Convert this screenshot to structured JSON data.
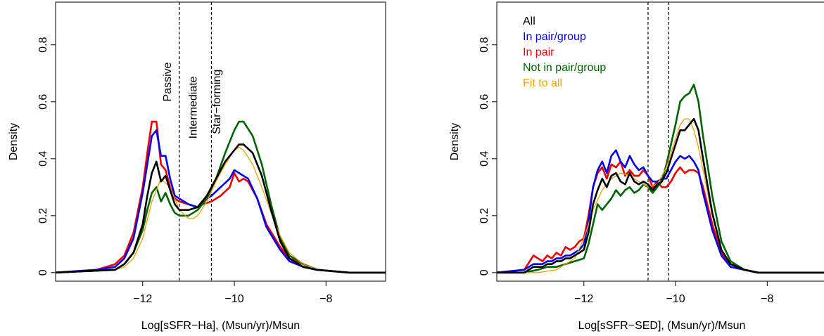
{
  "colors": {
    "all": "#000000",
    "pair_group": "#0000ee",
    "pair": "#ee0000",
    "not_pair_group": "#006400",
    "fit": "#f0a000"
  },
  "chart_data": [
    {
      "type": "line",
      "xlabel": "Log[sSFR−Ha], (Msun/yr)/Msun",
      "ylabel": "Density",
      "xlim": [
        -13.9,
        -6.7
      ],
      "ylim": [
        -0.03,
        0.95
      ],
      "xticks": [
        {
          "v": -12,
          "label": "−12"
        },
        {
          "v": -10,
          "label": "−10"
        },
        {
          "v": -8,
          "label": "−8"
        }
      ],
      "yticks": [
        {
          "v": 0,
          "label": "0"
        },
        {
          "v": 0.2,
          "label": "0.2"
        },
        {
          "v": 0.4,
          "label": "0.4"
        },
        {
          "v": 0.6,
          "label": "0.6"
        },
        {
          "v": 0.8,
          "label": "0.8"
        }
      ],
      "vlines": [
        -11.2,
        -10.5
      ],
      "region_labels": [
        {
          "text": "Passive",
          "x": -11.38,
          "y": 0.67
        },
        {
          "text": "Intermediate",
          "x": -10.82,
          "y": 0.58
        },
        {
          "text": "Star−forming",
          "x": -10.31,
          "y": 0.6
        }
      ],
      "legend": [],
      "series": [
        {
          "key": "pair",
          "x": [
            -13.9,
            -13.0,
            -12.6,
            -12.4,
            -12.2,
            -12.0,
            -11.9,
            -11.8,
            -11.7,
            -11.6,
            -11.5,
            -11.4,
            -11.3,
            -11.2,
            -11.0,
            -10.8,
            -10.7,
            -10.5,
            -10.3,
            -10.1,
            -10.0,
            -9.9,
            -9.8,
            -9.7,
            -9.5,
            -9.3,
            -9.0,
            -8.8,
            -8.5,
            -8.2,
            -7.5,
            -6.7
          ],
          "y": [
            0,
            0.01,
            0.03,
            0.06,
            0.14,
            0.3,
            0.42,
            0.53,
            0.53,
            0.38,
            0.36,
            0.3,
            0.26,
            0.25,
            0.24,
            0.23,
            0.24,
            0.25,
            0.27,
            0.3,
            0.35,
            0.32,
            0.33,
            0.32,
            0.26,
            0.17,
            0.09,
            0.05,
            0.03,
            0.01,
            0.0,
            0.0
          ]
        },
        {
          "key": "pair_group",
          "x": [
            -13.9,
            -13.0,
            -12.6,
            -12.4,
            -12.2,
            -12.0,
            -11.9,
            -11.8,
            -11.7,
            -11.6,
            -11.5,
            -11.4,
            -11.3,
            -11.2,
            -11.0,
            -10.8,
            -10.7,
            -10.5,
            -10.3,
            -10.1,
            -10.0,
            -9.9,
            -9.8,
            -9.7,
            -9.5,
            -9.3,
            -9.0,
            -8.8,
            -8.5,
            -8.2,
            -7.5,
            -6.7
          ],
          "y": [
            0,
            0.01,
            0.02,
            0.05,
            0.12,
            0.28,
            0.38,
            0.48,
            0.5,
            0.41,
            0.41,
            0.33,
            0.27,
            0.26,
            0.24,
            0.23,
            0.25,
            0.27,
            0.3,
            0.33,
            0.36,
            0.35,
            0.34,
            0.33,
            0.26,
            0.16,
            0.08,
            0.04,
            0.02,
            0.01,
            0.0,
            0.0
          ]
        },
        {
          "key": "not_pair_group",
          "x": [
            -13.9,
            -12.6,
            -12.4,
            -12.2,
            -12.0,
            -11.9,
            -11.8,
            -11.7,
            -11.6,
            -11.5,
            -11.4,
            -11.3,
            -11.2,
            -11.0,
            -10.8,
            -10.6,
            -10.4,
            -10.2,
            -10.0,
            -9.9,
            -9.8,
            -9.6,
            -9.4,
            -9.2,
            -9.0,
            -8.8,
            -8.5,
            -8.2,
            -7.5,
            -6.7
          ],
          "y": [
            0,
            0.01,
            0.03,
            0.07,
            0.15,
            0.22,
            0.28,
            0.3,
            0.25,
            0.28,
            0.24,
            0.21,
            0.2,
            0.2,
            0.22,
            0.26,
            0.33,
            0.42,
            0.5,
            0.53,
            0.53,
            0.48,
            0.38,
            0.24,
            0.12,
            0.06,
            0.03,
            0.01,
            0.0,
            0.0
          ]
        },
        {
          "key": "fit",
          "x": [
            -13.9,
            -12.6,
            -12.4,
            -12.2,
            -12.0,
            -11.8,
            -11.6,
            -11.4,
            -11.2,
            -11.0,
            -10.9,
            -10.8,
            -10.6,
            -10.4,
            -10.2,
            -10.0,
            -9.9,
            -9.8,
            -9.6,
            -9.4,
            -9.2,
            -9.0,
            -8.8,
            -8.5,
            -8.2,
            -7.5,
            -6.7
          ],
          "y": [
            0,
            0.01,
            0.02,
            0.05,
            0.12,
            0.25,
            0.33,
            0.3,
            0.22,
            0.19,
            0.19,
            0.2,
            0.25,
            0.32,
            0.38,
            0.43,
            0.44,
            0.43,
            0.38,
            0.3,
            0.21,
            0.13,
            0.07,
            0.03,
            0.01,
            0.0,
            0.0
          ]
        },
        {
          "key": "all",
          "x": [
            -13.9,
            -12.6,
            -12.4,
            -12.2,
            -12.0,
            -11.9,
            -11.8,
            -11.7,
            -11.6,
            -11.5,
            -11.4,
            -11.3,
            -11.2,
            -11.0,
            -10.8,
            -10.6,
            -10.4,
            -10.2,
            -10.0,
            -9.9,
            -9.8,
            -9.6,
            -9.4,
            -9.2,
            -9.0,
            -8.8,
            -8.5,
            -8.2,
            -7.5,
            -6.7
          ],
          "y": [
            0,
            0.01,
            0.03,
            0.07,
            0.17,
            0.27,
            0.35,
            0.39,
            0.32,
            0.34,
            0.29,
            0.24,
            0.22,
            0.22,
            0.23,
            0.27,
            0.33,
            0.39,
            0.43,
            0.45,
            0.45,
            0.42,
            0.34,
            0.22,
            0.11,
            0.05,
            0.02,
            0.01,
            0.0,
            0.0
          ]
        }
      ]
    },
    {
      "type": "line",
      "xlabel": "Log[sSFR−SED], (Msun/yr)/Msun",
      "ylabel": "Density",
      "xlim": [
        -13.9,
        -6.7
      ],
      "ylim": [
        -0.03,
        0.95
      ],
      "xticks": [
        {
          "v": -12,
          "label": "−12"
        },
        {
          "v": -10,
          "label": "−10"
        },
        {
          "v": -8,
          "label": "−8"
        }
      ],
      "yticks": [
        {
          "v": 0,
          "label": "0"
        },
        {
          "v": 0.2,
          "label": "0.2"
        },
        {
          "v": 0.4,
          "label": "0.4"
        },
        {
          "v": 0.6,
          "label": "0.6"
        },
        {
          "v": 0.8,
          "label": "0.8"
        }
      ],
      "vlines": [
        -10.6,
        -10.15
      ],
      "region_labels": [],
      "legend": [
        {
          "key": "all",
          "label": "All"
        },
        {
          "key": "pair_group",
          "label": "In pair/group"
        },
        {
          "key": "pair",
          "label": "In pair"
        },
        {
          "key": "not_pair_group",
          "label": "Not in pair/group"
        },
        {
          "key": "fit",
          "label": "Fit to all"
        }
      ],
      "series": [
        {
          "key": "pair",
          "x": [
            -13.9,
            -13.3,
            -13.1,
            -13.0,
            -12.9,
            -12.8,
            -12.7,
            -12.6,
            -12.5,
            -12.4,
            -12.3,
            -12.2,
            -12.1,
            -12.0,
            -11.9,
            -11.8,
            -11.7,
            -11.6,
            -11.5,
            -11.4,
            -11.3,
            -11.2,
            -11.1,
            -11.0,
            -10.9,
            -10.8,
            -10.7,
            -10.6,
            -10.5,
            -10.4,
            -10.3,
            -10.2,
            -10.1,
            -10.0,
            -9.9,
            -9.8,
            -9.7,
            -9.6,
            -9.5,
            -9.4,
            -9.2,
            -9.0,
            -8.8,
            -8.5,
            -8.2,
            -7.5,
            -6.7
          ],
          "y": [
            0,
            0.01,
            0.06,
            0.05,
            0.04,
            0.06,
            0.05,
            0.07,
            0.06,
            0.09,
            0.08,
            0.09,
            0.11,
            0.12,
            0.2,
            0.3,
            0.35,
            0.37,
            0.33,
            0.38,
            0.37,
            0.39,
            0.34,
            0.36,
            0.34,
            0.34,
            0.36,
            0.34,
            0.3,
            0.32,
            0.3,
            0.3,
            0.32,
            0.35,
            0.37,
            0.35,
            0.36,
            0.36,
            0.35,
            0.3,
            0.17,
            0.07,
            0.03,
            0.01,
            0.0,
            0.0,
            0.0
          ]
        },
        {
          "key": "pair_group",
          "x": [
            -13.9,
            -13.3,
            -13.1,
            -13.0,
            -12.9,
            -12.8,
            -12.7,
            -12.6,
            -12.5,
            -12.4,
            -12.3,
            -12.2,
            -12.1,
            -12.0,
            -11.9,
            -11.8,
            -11.7,
            -11.6,
            -11.5,
            -11.4,
            -11.3,
            -11.2,
            -11.1,
            -11.0,
            -10.9,
            -10.8,
            -10.7,
            -10.6,
            -10.5,
            -10.4,
            -10.3,
            -10.2,
            -10.1,
            -10.0,
            -9.9,
            -9.8,
            -9.7,
            -9.6,
            -9.5,
            -9.4,
            -9.2,
            -9.0,
            -8.8,
            -8.5,
            -8.2,
            -7.5,
            -6.7
          ],
          "y": [
            0,
            0.01,
            0.03,
            0.03,
            0.03,
            0.04,
            0.04,
            0.05,
            0.05,
            0.06,
            0.06,
            0.07,
            0.08,
            0.1,
            0.18,
            0.3,
            0.36,
            0.39,
            0.35,
            0.41,
            0.43,
            0.39,
            0.37,
            0.41,
            0.38,
            0.36,
            0.37,
            0.34,
            0.32,
            0.32,
            0.33,
            0.33,
            0.36,
            0.39,
            0.41,
            0.4,
            0.41,
            0.39,
            0.36,
            0.28,
            0.15,
            0.06,
            0.02,
            0.01,
            0.0,
            0.0,
            0.0
          ]
        },
        {
          "key": "not_pair_group",
          "x": [
            -13.9,
            -13.3,
            -13.0,
            -12.8,
            -12.6,
            -12.4,
            -12.2,
            -12.0,
            -11.9,
            -11.8,
            -11.7,
            -11.6,
            -11.5,
            -11.4,
            -11.3,
            -11.2,
            -11.1,
            -11.0,
            -10.9,
            -10.8,
            -10.7,
            -10.6,
            -10.5,
            -10.4,
            -10.3,
            -10.2,
            -10.1,
            -10.0,
            -9.9,
            -9.8,
            -9.7,
            -9.6,
            -9.5,
            -9.4,
            -9.2,
            -9.0,
            -8.8,
            -8.5,
            -8.2,
            -7.5,
            -6.7
          ],
          "y": [
            0,
            0.0,
            0.01,
            0.02,
            0.02,
            0.03,
            0.04,
            0.05,
            0.1,
            0.17,
            0.24,
            0.22,
            0.24,
            0.26,
            0.29,
            0.27,
            0.29,
            0.3,
            0.28,
            0.29,
            0.31,
            0.3,
            0.28,
            0.3,
            0.32,
            0.38,
            0.45,
            0.52,
            0.6,
            0.62,
            0.63,
            0.66,
            0.6,
            0.48,
            0.27,
            0.11,
            0.04,
            0.01,
            0.0,
            0.0,
            0.0
          ]
        },
        {
          "key": "fit",
          "x": [
            -13.9,
            -13.0,
            -12.6,
            -12.2,
            -12.0,
            -11.8,
            -11.6,
            -11.4,
            -11.2,
            -11.0,
            -10.8,
            -10.6,
            -10.4,
            -10.2,
            -10.0,
            -9.9,
            -9.8,
            -9.7,
            -9.6,
            -9.5,
            -9.4,
            -9.2,
            -9.0,
            -8.8,
            -8.5,
            -8.2,
            -7.5,
            -6.7
          ],
          "y": [
            0,
            0.0,
            0.01,
            0.05,
            0.12,
            0.22,
            0.29,
            0.33,
            0.35,
            0.34,
            0.32,
            0.3,
            0.31,
            0.37,
            0.47,
            0.52,
            0.54,
            0.54,
            0.5,
            0.44,
            0.36,
            0.2,
            0.08,
            0.03,
            0.01,
            0.0,
            0.0,
            0.0
          ]
        },
        {
          "key": "all",
          "x": [
            -13.9,
            -13.3,
            -13.1,
            -13.0,
            -12.9,
            -12.8,
            -12.7,
            -12.6,
            -12.5,
            -12.4,
            -12.3,
            -12.2,
            -12.1,
            -12.0,
            -11.9,
            -11.8,
            -11.7,
            -11.6,
            -11.5,
            -11.4,
            -11.3,
            -11.2,
            -11.1,
            -11.0,
            -10.9,
            -10.8,
            -10.7,
            -10.6,
            -10.5,
            -10.4,
            -10.3,
            -10.2,
            -10.1,
            -10.0,
            -9.9,
            -9.8,
            -9.7,
            -9.6,
            -9.5,
            -9.4,
            -9.2,
            -9.0,
            -8.8,
            -8.5,
            -8.2,
            -7.5,
            -6.7
          ],
          "y": [
            0,
            0.0,
            0.02,
            0.02,
            0.02,
            0.03,
            0.03,
            0.04,
            0.04,
            0.05,
            0.05,
            0.06,
            0.07,
            0.08,
            0.14,
            0.24,
            0.29,
            0.33,
            0.3,
            0.34,
            0.35,
            0.32,
            0.31,
            0.35,
            0.32,
            0.31,
            0.32,
            0.31,
            0.29,
            0.31,
            0.32,
            0.35,
            0.4,
            0.45,
            0.5,
            0.5,
            0.52,
            0.54,
            0.5,
            0.4,
            0.21,
            0.08,
            0.03,
            0.01,
            0.0,
            0.0,
            0.0
          ]
        }
      ]
    }
  ]
}
